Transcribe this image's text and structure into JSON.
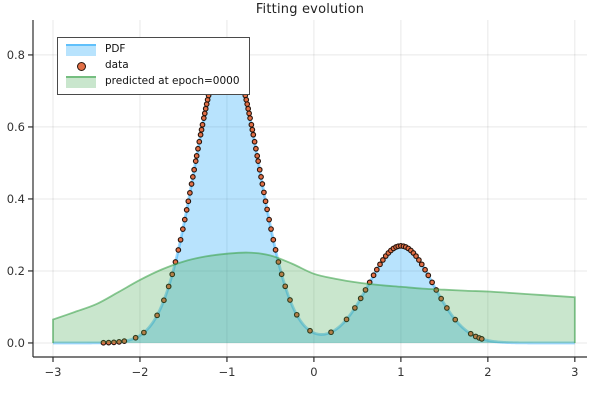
{
  "chart_data": {
    "type": "area+scatter",
    "title": "Fitting evolution",
    "xlabel": "",
    "ylabel": "",
    "xlim": [
      -3.23,
      3.14
    ],
    "ylim": [
      -0.039,
      0.897
    ],
    "x_ticks": [
      -3,
      -2,
      -1,
      0,
      1,
      2,
      3
    ],
    "x_tick_labels": [
      "−3",
      "−2",
      "−1",
      "0",
      "1",
      "2",
      "3"
    ],
    "y_ticks": [
      0.0,
      0.2,
      0.4,
      0.6,
      0.8
    ],
    "y_tick_labels": [
      "0.0",
      "0.2",
      "0.4",
      "0.6",
      "0.8"
    ],
    "grid": true,
    "grid_color": "rgba(0,0,0,0.09)",
    "axis_color": "#2d2d2d",
    "tick_label_color": "#333333",
    "legend_position": "top-left",
    "series": [
      {
        "name": "PDF",
        "type": "area",
        "color": "#009af9",
        "fill_alpha": 0.28,
        "line_alpha": 0.38,
        "line_width": 2.8,
        "domain": [
          -3,
          3
        ],
        "model": {
          "kind": "gaussian-mixture",
          "components": [
            {
              "weight": 0.75,
              "mu": -1,
              "sigma": 0.37
            },
            {
              "weight": 0.25,
              "mu": 1,
              "sigma": 0.37
            }
          ]
        }
      },
      {
        "name": "data",
        "type": "scatter",
        "marker_color": "#e26f46",
        "marker_edge_color": "#26140c",
        "marker_radius": 2.3,
        "y_rule": "pdf-of-series-0",
        "x": [
          -2.42,
          -2.36,
          -2.3,
          -2.24,
          -2.18,
          -2.05,
          -1.955,
          -1.803,
          -1.725,
          -1.67,
          -1.629,
          -1.592,
          -1.559,
          -1.533,
          -1.507,
          -1.485,
          -1.463,
          -1.444,
          -1.426,
          -1.407,
          -1.392,
          -1.377,
          -1.359,
          -1.348,
          -1.333,
          -1.318,
          -1.303,
          -1.292,
          -1.281,
          -1.266,
          -1.255,
          -1.244,
          -1.233,
          -1.222,
          -1.211,
          -1.2,
          -1.189,
          -1.178,
          -1.167,
          -1.159,
          -1.148,
          -1.137,
          -1.13,
          -1.118,
          -1.107,
          -1.1,
          -1.089,
          -1.078,
          -1.07,
          -1.059,
          -1.052,
          -1.041,
          -1.033,
          -1.022,
          -1.015,
          -1.004,
          -0.996,
          -0.985,
          -0.978,
          -0.967,
          -0.959,
          -0.948,
          -0.941,
          -0.93,
          -0.922,
          -0.911,
          -0.9,
          -0.893,
          -0.882,
          -0.871,
          -0.863,
          -0.852,
          -0.841,
          -0.834,
          -0.822,
          -0.811,
          -0.8,
          -0.789,
          -0.778,
          -0.767,
          -0.756,
          -0.745,
          -0.734,
          -0.719,
          -0.708,
          -0.697,
          -0.682,
          -0.667,
          -0.652,
          -0.641,
          -0.623,
          -0.608,
          -0.593,
          -0.575,
          -0.556,
          -0.538,
          -0.515,
          -0.493,
          -0.467,
          -0.441,
          -0.408,
          -0.371,
          -0.33,
          -0.275,
          -0.197,
          -0.045,
          0.197,
          0.375,
          0.471,
          0.538,
          0.593,
          0.641,
          0.686,
          0.723,
          0.76,
          0.793,
          0.826,
          0.856,
          0.885,
          0.915,
          0.944,
          0.97,
          1.0,
          1.03,
          1.056,
          1.085,
          1.115,
          1.144,
          1.174,
          1.207,
          1.24,
          1.278,
          1.315,
          1.359,
          1.407,
          1.463,
          1.529,
          1.625,
          1.803,
          1.86,
          1.9,
          1.93
        ]
      },
      {
        "name": "predicted at epoch=0000",
        "type": "area",
        "color": "#3da44d",
        "fill_alpha": 0.28,
        "line_alpha": 0.6,
        "line_width": 1.8,
        "points": [
          [
            -3,
            0.065
          ],
          [
            -2.75,
            0.086
          ],
          [
            -2.5,
            0.108
          ],
          [
            -2.25,
            0.141
          ],
          [
            -2,
            0.175
          ],
          [
            -1.75,
            0.204
          ],
          [
            -1.5,
            0.226
          ],
          [
            -1.25,
            0.24
          ],
          [
            -1,
            0.248
          ],
          [
            -0.75,
            0.251
          ],
          [
            -0.5,
            0.243
          ],
          [
            -0.25,
            0.22
          ],
          [
            0,
            0.192
          ],
          [
            0.25,
            0.178
          ],
          [
            0.5,
            0.168
          ],
          [
            0.75,
            0.161
          ],
          [
            1,
            0.156
          ],
          [
            1.25,
            0.151
          ],
          [
            1.5,
            0.148
          ],
          [
            1.75,
            0.145
          ],
          [
            2,
            0.143
          ],
          [
            2.25,
            0.139
          ],
          [
            2.5,
            0.135
          ],
          [
            2.75,
            0.131
          ],
          [
            3,
            0.127
          ]
        ]
      }
    ]
  }
}
